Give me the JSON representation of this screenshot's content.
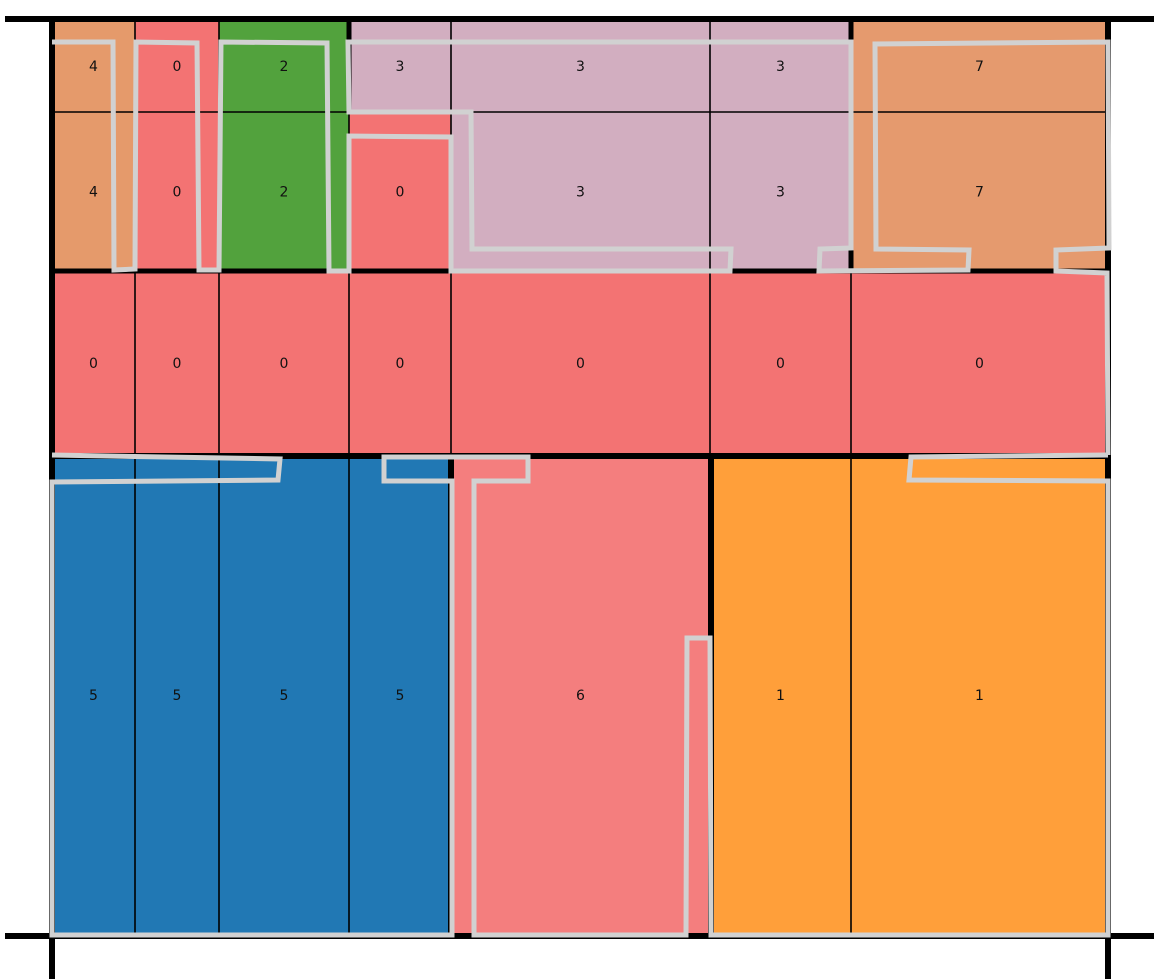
{
  "colors": {
    "0": "#f37373",
    "1": "#ff9f3a",
    "2": "#52a23d",
    "3": "#d2aec0",
    "4": "#e59a6b",
    "5": "#2178b4",
    "6": "#f47e7e",
    "7": "#e59a6e",
    "outline": "#d1d1d1",
    "thick_border": "#000000",
    "thin_border": "#000000"
  },
  "cells": [
    {
      "id": "r0c0",
      "label": "4",
      "group": "4"
    },
    {
      "id": "r0c1",
      "label": "0",
      "group": "0"
    },
    {
      "id": "r0c2",
      "label": "2",
      "group": "2"
    },
    {
      "id": "r0c3",
      "label": "3",
      "group": "3"
    },
    {
      "id": "r0c4",
      "label": "3",
      "group": "3"
    },
    {
      "id": "r0c5",
      "label": "3",
      "group": "3"
    },
    {
      "id": "r0c6",
      "label": "7",
      "group": "7"
    },
    {
      "id": "r1c0",
      "label": "4",
      "group": "4"
    },
    {
      "id": "r1c1",
      "label": "0",
      "group": "0"
    },
    {
      "id": "r1c2",
      "label": "2",
      "group": "2"
    },
    {
      "id": "r1c3",
      "label": "0",
      "group": "0"
    },
    {
      "id": "r1c4",
      "label": "3",
      "group": "3"
    },
    {
      "id": "r1c5",
      "label": "3",
      "group": "3"
    },
    {
      "id": "r1c6",
      "label": "7",
      "group": "7"
    },
    {
      "id": "r2c0",
      "label": "0",
      "group": "0"
    },
    {
      "id": "r2c1",
      "label": "0",
      "group": "0"
    },
    {
      "id": "r2c2",
      "label": "0",
      "group": "0"
    },
    {
      "id": "r2c3",
      "label": "0",
      "group": "0"
    },
    {
      "id": "r2c4",
      "label": "0",
      "group": "0"
    },
    {
      "id": "r2c5",
      "label": "0",
      "group": "0"
    },
    {
      "id": "r2c6",
      "label": "0",
      "group": "0"
    },
    {
      "id": "r3c0",
      "label": "5",
      "group": "5"
    },
    {
      "id": "r3c1",
      "label": "5",
      "group": "5"
    },
    {
      "id": "r3c2",
      "label": "5",
      "group": "5"
    },
    {
      "id": "r3c3",
      "label": "5",
      "group": "5"
    },
    {
      "id": "r3c4",
      "label": "6",
      "group": "6"
    },
    {
      "id": "r3c5",
      "label": "1",
      "group": "1"
    },
    {
      "id": "r3c6",
      "label": "1",
      "group": "1"
    }
  ]
}
